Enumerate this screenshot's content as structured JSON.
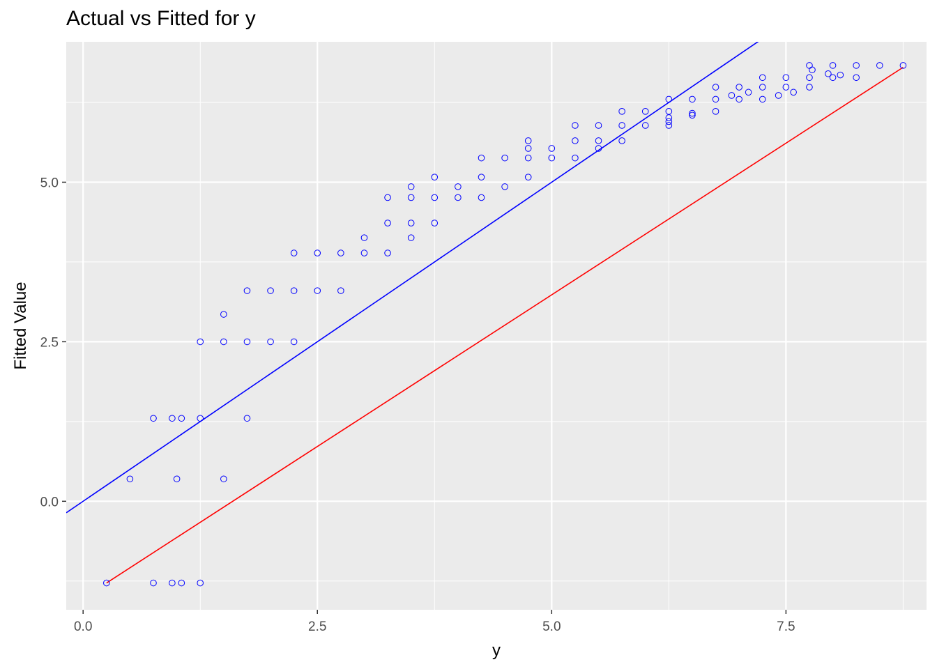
{
  "chart_data": {
    "type": "scatter",
    "title": "Actual vs Fitted for y",
    "xlabel": "y",
    "ylabel": "Fitted Value",
    "xlim": [
      -0.18,
      9.0
    ],
    "ylim": [
      -1.7,
      7.2
    ],
    "x_ticks": [
      0.0,
      2.5,
      5.0,
      7.5
    ],
    "x_tick_labels": [
      "0.0",
      "2.5",
      "5.0",
      "7.5"
    ],
    "y_ticks": [
      0.0,
      2.5,
      5.0
    ],
    "y_tick_labels": [
      "0.0",
      "2.5",
      "5.0"
    ],
    "grid": true,
    "colors": {
      "panel": "#ebebeb",
      "grid": "#ffffff",
      "points": "#0000ff",
      "identity_line": "#0000ff",
      "fit_line": "#ff0000"
    },
    "reference_lines": [
      {
        "color": "#0000ff",
        "intercept": 0.0,
        "slope": 1.0
      },
      {
        "color": "#ff0000",
        "from": [
          0.25,
          -1.28
        ],
        "to": [
          8.75,
          6.8
        ]
      }
    ],
    "points": [
      [
        0.25,
        -1.28
      ],
      [
        0.75,
        -1.28
      ],
      [
        0.95,
        -1.28
      ],
      [
        1.05,
        -1.28
      ],
      [
        1.25,
        -1.28
      ],
      [
        0.5,
        0.35
      ],
      [
        1.0,
        0.35
      ],
      [
        1.5,
        0.35
      ],
      [
        0.75,
        1.3
      ],
      [
        0.95,
        1.3
      ],
      [
        1.05,
        1.3
      ],
      [
        1.25,
        1.3
      ],
      [
        1.75,
        1.3
      ],
      [
        1.25,
        2.5
      ],
      [
        1.5,
        2.5
      ],
      [
        1.75,
        2.5
      ],
      [
        2.0,
        2.5
      ],
      [
        2.25,
        2.5
      ],
      [
        1.5,
        2.93
      ],
      [
        1.75,
        3.3
      ],
      [
        2.0,
        3.3
      ],
      [
        2.25,
        3.3
      ],
      [
        2.5,
        3.3
      ],
      [
        2.75,
        3.3
      ],
      [
        2.25,
        3.89
      ],
      [
        2.5,
        3.89
      ],
      [
        2.75,
        3.89
      ],
      [
        3.0,
        3.89
      ],
      [
        3.25,
        3.89
      ],
      [
        3.0,
        4.13
      ],
      [
        3.5,
        4.13
      ],
      [
        3.25,
        4.36
      ],
      [
        3.5,
        4.36
      ],
      [
        3.75,
        4.36
      ],
      [
        3.25,
        4.76
      ],
      [
        3.5,
        4.76
      ],
      [
        3.75,
        4.76
      ],
      [
        4.0,
        4.76
      ],
      [
        4.25,
        4.76
      ],
      [
        3.5,
        4.93
      ],
      [
        4.0,
        4.93
      ],
      [
        4.5,
        4.93
      ],
      [
        3.75,
        5.08
      ],
      [
        4.25,
        5.08
      ],
      [
        4.75,
        5.08
      ],
      [
        4.25,
        5.38
      ],
      [
        4.5,
        5.38
      ],
      [
        4.75,
        5.38
      ],
      [
        5.0,
        5.38
      ],
      [
        5.25,
        5.38
      ],
      [
        4.75,
        5.53
      ],
      [
        5.0,
        5.53
      ],
      [
        5.5,
        5.53
      ],
      [
        4.75,
        5.65
      ],
      [
        5.25,
        5.65
      ],
      [
        5.5,
        5.65
      ],
      [
        5.75,
        5.65
      ],
      [
        5.25,
        5.89
      ],
      [
        5.5,
        5.89
      ],
      [
        5.75,
        5.89
      ],
      [
        6.0,
        5.89
      ],
      [
        6.25,
        5.89
      ],
      [
        6.25,
        5.95
      ],
      [
        6.25,
        6.01
      ],
      [
        5.75,
        6.11
      ],
      [
        6.0,
        6.11
      ],
      [
        6.25,
        6.11
      ],
      [
        6.75,
        6.11
      ],
      [
        6.5,
        6.05
      ],
      [
        6.5,
        6.08
      ],
      [
        6.25,
        6.3
      ],
      [
        6.5,
        6.3
      ],
      [
        6.75,
        6.3
      ],
      [
        7.0,
        6.3
      ],
      [
        7.25,
        6.3
      ],
      [
        6.92,
        6.36
      ],
      [
        7.1,
        6.41
      ],
      [
        7.42,
        6.36
      ],
      [
        7.58,
        6.41
      ],
      [
        6.75,
        6.49
      ],
      [
        7.0,
        6.49
      ],
      [
        7.25,
        6.49
      ],
      [
        7.5,
        6.49
      ],
      [
        7.75,
        6.49
      ],
      [
        7.25,
        6.64
      ],
      [
        7.5,
        6.64
      ],
      [
        7.75,
        6.64
      ],
      [
        8.0,
        6.64
      ],
      [
        8.25,
        6.64
      ],
      [
        8.08,
        6.68
      ],
      [
        7.95,
        6.7
      ],
      [
        7.78,
        6.76
      ],
      [
        7.75,
        6.83
      ],
      [
        8.0,
        6.83
      ],
      [
        8.25,
        6.83
      ],
      [
        8.5,
        6.83
      ],
      [
        8.75,
        6.83
      ]
    ]
  }
}
